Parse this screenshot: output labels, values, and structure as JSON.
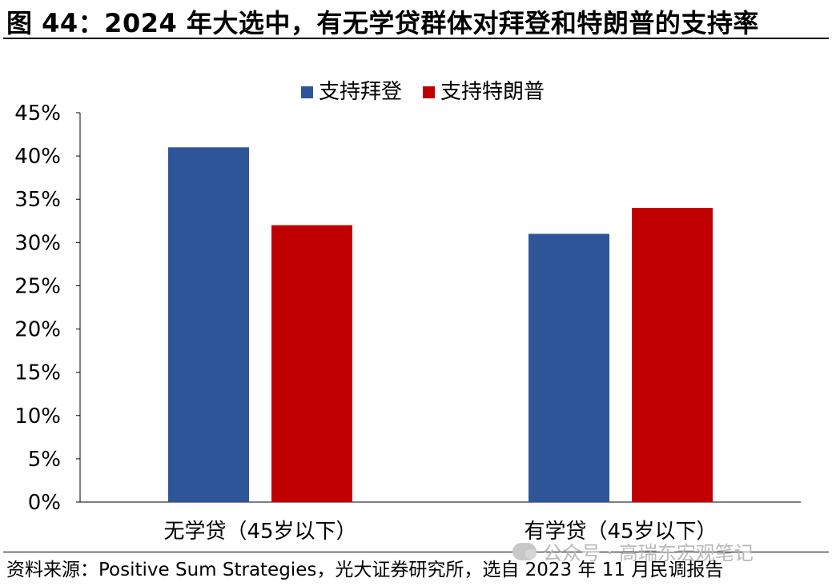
{
  "figure": {
    "title": "图 44：2024 年大选中，有无学贷群体对拜登和特朗普的支持率",
    "source": "资料来源：Positive Sum Strategies，光大证券研究所，选自 2023 年 11 月民调报告",
    "watermark": "公众号 · 高瑞东宏观笔记"
  },
  "chart_data": {
    "type": "bar",
    "title": "",
    "xlabel": "",
    "ylabel": "",
    "categories": [
      "无学贷（45岁以下）",
      "有学贷（45岁以下）"
    ],
    "series": [
      {
        "name": "支持拜登",
        "values": [
          41,
          31
        ],
        "color": "#2E5597"
      },
      {
        "name": "支持特朗普",
        "values": [
          32,
          34
        ],
        "color": "#C00000"
      }
    ],
    "ylim": [
      0,
      45
    ],
    "yticks": [
      0,
      5,
      10,
      15,
      20,
      25,
      30,
      35,
      40,
      45
    ],
    "tick_suffix": "%",
    "grid": false,
    "legend_position": "top-center"
  }
}
